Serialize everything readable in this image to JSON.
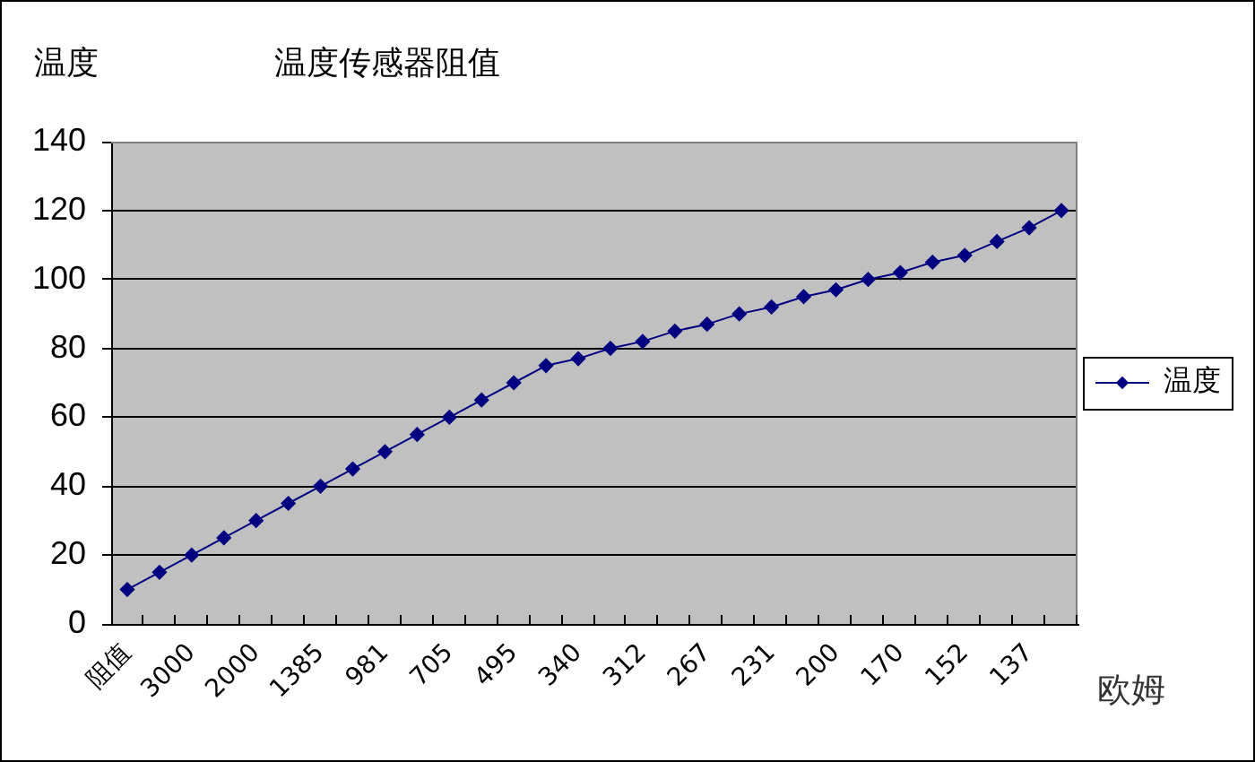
{
  "chart_data": {
    "type": "line",
    "title": "温度传感器阻值",
    "ylabel": "温度",
    "xlabel": "欧姆",
    "categories": [
      "阻值",
      null,
      "3000",
      null,
      "2000",
      null,
      "1385",
      null,
      "981",
      null,
      "705",
      null,
      "495",
      null,
      "340",
      null,
      "312",
      null,
      "267",
      null,
      "231",
      null,
      "200",
      null,
      "170",
      null,
      "152",
      null,
      "137",
      null
    ],
    "series": [
      {
        "name": "温度",
        "color": "#000080",
        "values": [
          10,
          15,
          20,
          25,
          30,
          35,
          40,
          45,
          50,
          55,
          60,
          65,
          70,
          75,
          77,
          80,
          82,
          85,
          87,
          90,
          92,
          95,
          97,
          100,
          102,
          105,
          107,
          111,
          115,
          120
        ]
      }
    ],
    "ylim": [
      0,
      140
    ],
    "yticks": [
      0,
      20,
      40,
      60,
      80,
      100,
      120,
      140
    ],
    "grid": "y",
    "legend": "right",
    "marker": "diamond",
    "line_style": "solid"
  }
}
